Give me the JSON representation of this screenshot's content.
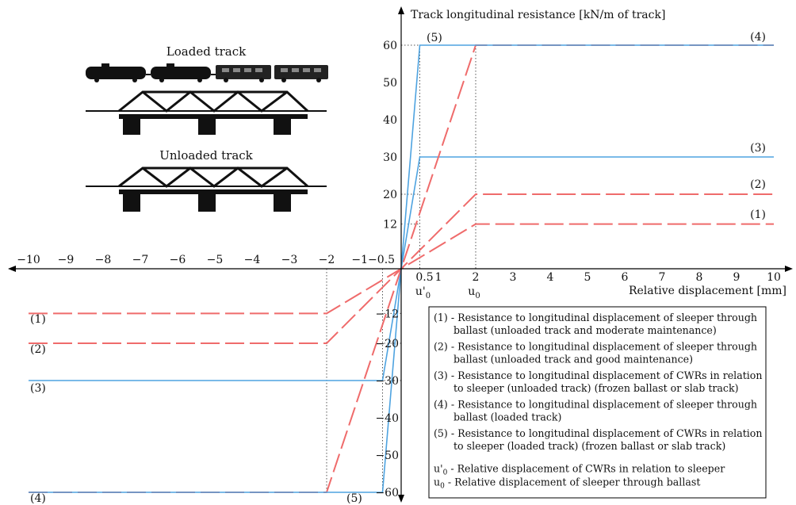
{
  "chart_data": {
    "type": "line",
    "ylabel": "Track longitudinal resistance [kN/m of track]",
    "xlabel": "Relative displacement [mm]",
    "xlim": [
      -10,
      10
    ],
    "ylim": [
      -60,
      60
    ],
    "x_tick_labels_pos": [
      "0.5",
      "1",
      "2",
      "3",
      "4",
      "5",
      "6",
      "7",
      "8",
      "9",
      "10"
    ],
    "x_tick_labels_neg": [
      "−1−0.5",
      "−2",
      "−3",
      "−4",
      "−5",
      "−6",
      "−7",
      "−8",
      "−9",
      "−10"
    ],
    "y_tick_labels_pos": [
      "12",
      "20",
      "30",
      "40",
      "50",
      "60"
    ],
    "y_tick_labels_neg": [
      "−12",
      "−20",
      "−30",
      "−40",
      "−50",
      "−60"
    ],
    "x_marker_labels": [
      "u'0",
      "u0"
    ],
    "colors": {
      "dashed": "#ef6b6b",
      "solid": "#4ea3e0",
      "axis": "#000000",
      "guide": "#555555"
    },
    "series": [
      {
        "label": "(1)",
        "style": "dashed",
        "points": [
          [
            -10,
            -12
          ],
          [
            -2,
            -12
          ],
          [
            0,
            0
          ],
          [
            2,
            12
          ],
          [
            10,
            12
          ]
        ]
      },
      {
        "label": "(2)",
        "style": "dashed",
        "points": [
          [
            -10,
            -20
          ],
          [
            -2,
            -20
          ],
          [
            0,
            0
          ],
          [
            2,
            20
          ],
          [
            10,
            20
          ]
        ]
      },
      {
        "label": "(3)",
        "style": "solid",
        "points": [
          [
            -10,
            -30
          ],
          [
            -0.5,
            -30
          ],
          [
            0,
            0
          ],
          [
            0.5,
            30
          ],
          [
            10,
            30
          ]
        ]
      },
      {
        "label": "(4)",
        "style": "dashed",
        "points": [
          [
            -10,
            -60
          ],
          [
            -2,
            -60
          ],
          [
            0,
            0
          ],
          [
            2,
            60
          ],
          [
            10,
            60
          ]
        ]
      },
      {
        "label": "(5)",
        "style": "solid",
        "points": [
          [
            -10,
            -60
          ],
          [
            -0.5,
            -60
          ],
          [
            0,
            0
          ],
          [
            0.5,
            60
          ],
          [
            10,
            60
          ]
        ]
      }
    ],
    "legend_items": [
      [
        "(1) - Resistance to longitudinal displacement of sleeper through",
        "ballast (unloaded track and moderate maintenance)"
      ],
      [
        "(2) - Resistance to longitudinal displacement of sleeper through",
        "ballast (unloaded track and good maintenance)"
      ],
      [
        "(3) - Resistance to longitudinal displacement of CWRs in relation",
        "to sleeper (unloaded track) (frozen ballast or slab track)"
      ],
      [
        "(4) - Resistance to longitudinal displacement of sleeper through",
        "ballast (loaded track)"
      ],
      [
        "(5) - Resistance to longitudinal displacement of CWRs in relation",
        "to sleeper (loaded track) (frozen ballast or slab track)"
      ]
    ],
    "legend_notes": [
      "u'0 - Relative displacement of CWRs in relation to sleeper",
      "u0 - Relative displacement of sleeper through ballast"
    ],
    "illustrations": {
      "loaded_label": "Loaded track",
      "unloaded_label": "Unloaded track"
    }
  }
}
